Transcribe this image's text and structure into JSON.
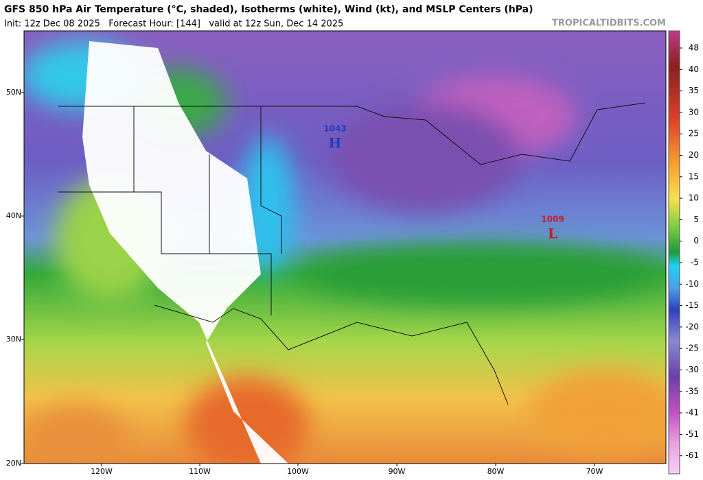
{
  "header": {
    "title": "GFS 850 hPa Air Temperature (°C, shaded), Isotherms (white), Wind (kt), and MSLP Centers (hPa)",
    "subtitle": "Init: 12z Dec 08 2025   Forecast Hour: [144]   valid at 12z Sun, Dec 14 2025",
    "credit": "TROPICALTIDBITS.COM"
  },
  "map": {
    "lat_labels": [
      "50N",
      "40N",
      "30N",
      "20N"
    ],
    "lon_labels": [
      "120W",
      "110W",
      "100W",
      "90W",
      "80W",
      "70W"
    ],
    "colorbar_labels": [
      48,
      40,
      35,
      30,
      25,
      20,
      15,
      10,
      5,
      0,
      -5,
      -10,
      -15,
      -20,
      -25,
      -30,
      -35,
      -41,
      -51,
      -61
    ],
    "centers": [
      {
        "pressure": "1043",
        "letter": "H"
      },
      {
        "pressure": "1009",
        "letter": "L"
      }
    ]
  }
}
